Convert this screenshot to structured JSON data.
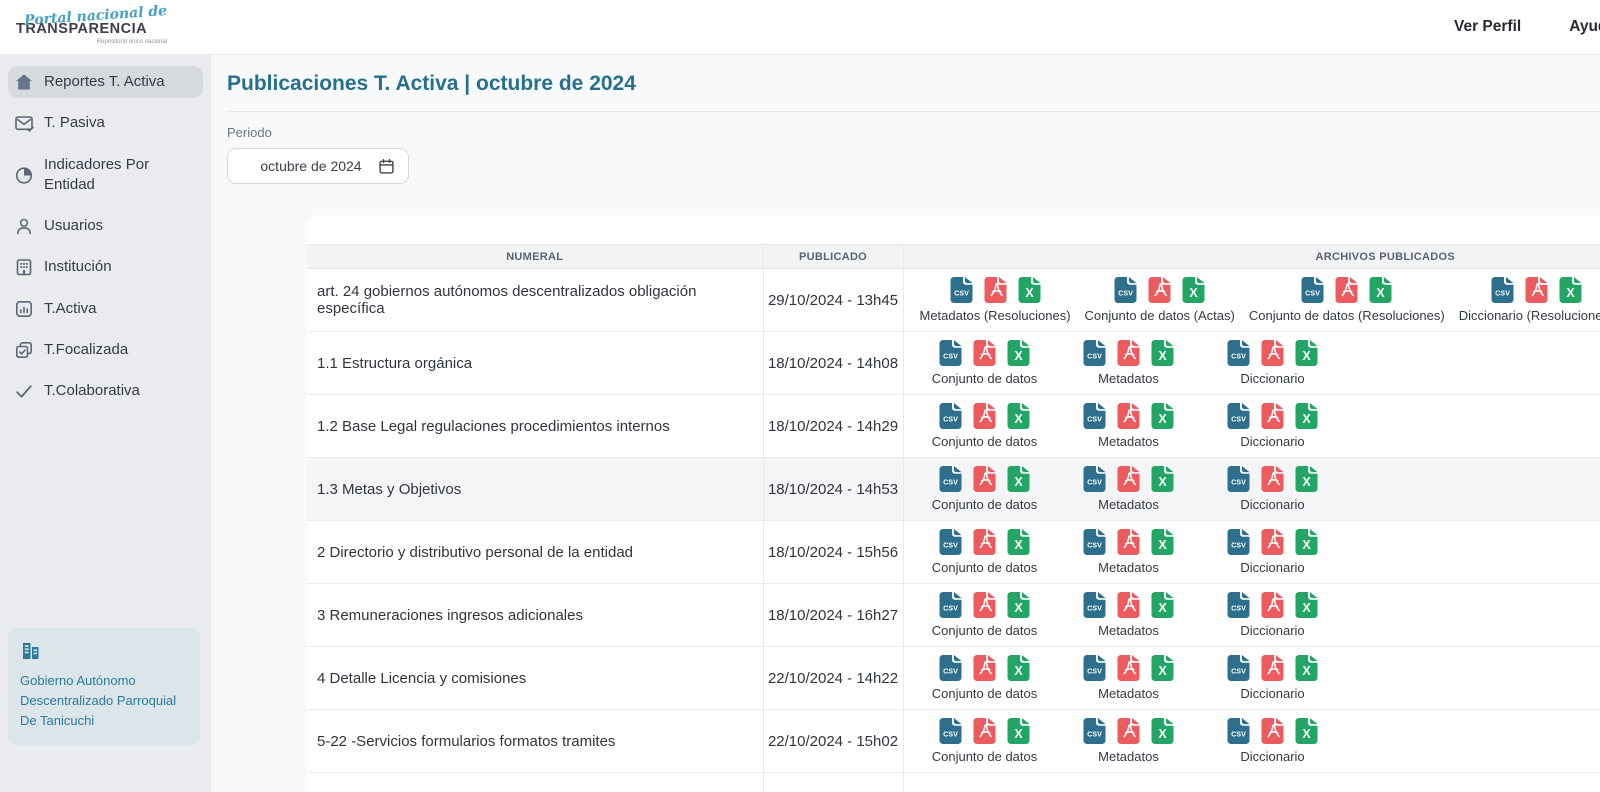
{
  "brand": {
    "script": "Portal nacional de",
    "name": "TRANSPARENCIA",
    "tagline": "Repositorio único nacional"
  },
  "header": {
    "links": [
      {
        "label": "Ver Perfil"
      },
      {
        "label": "Ayuda"
      }
    ]
  },
  "sidebar": {
    "items": [
      {
        "label": "Reportes T. Activa",
        "icon": "home-icon",
        "active": true
      },
      {
        "label": "T. Pasiva",
        "icon": "mail-check-icon",
        "active": false
      },
      {
        "label": "Indicadores Por Entidad",
        "icon": "pie-chart-icon",
        "active": false
      },
      {
        "label": "Usuarios",
        "icon": "user-icon",
        "active": false
      },
      {
        "label": "Institución",
        "icon": "building-icon",
        "active": false
      },
      {
        "label": "T.Activa",
        "icon": "bar-chart-icon",
        "active": false
      },
      {
        "label": "T.Focalizada",
        "icon": "copy-check-icon",
        "active": false
      },
      {
        "label": "T.Colaborativa",
        "icon": "check-icon",
        "active": false
      }
    ],
    "entity": {
      "name": "Gobierno Autónomo Descentralizado Parroquial De Tanicuchi",
      "icon": "institution-icon"
    }
  },
  "main": {
    "title": "Publicaciones T. Activa | octubre de 2024",
    "period_label": "Periodo",
    "period_value": "octubre de 2024",
    "table": {
      "columns": [
        "NUMERAL",
        "PUBLICADO",
        "ARCHIVOS PUBLICADOS"
      ],
      "file_types": [
        {
          "id": "csv",
          "label": "CSV",
          "color": "#2d6f8c"
        },
        {
          "id": "pdf",
          "label": "PDF",
          "color": "#ec5b5e"
        },
        {
          "id": "xls",
          "label": "X",
          "color": "#23a566"
        }
      ],
      "rows": [
        {
          "numeral": "art. 24 gobiernos autónomos descentralizados obligación específica",
          "publicado": "29/10/2024 - 13h45",
          "highlighted": false,
          "archivos": [
            {
              "label": "Metadatos (Resoluciones)"
            },
            {
              "label": "Conjunto de datos (Actas)"
            },
            {
              "label": "Conjunto de datos (Resoluciones)"
            },
            {
              "label": "Diccionario (Resoluciones)"
            }
          ]
        },
        {
          "numeral": "1.1 Estructura orgánica",
          "publicado": "18/10/2024 - 14h08",
          "highlighted": false,
          "archivos": [
            {
              "label": "Conjunto de datos"
            },
            {
              "label": "Metadatos"
            },
            {
              "label": "Diccionario"
            }
          ]
        },
        {
          "numeral": "1.2 Base Legal regulaciones procedimientos internos",
          "publicado": "18/10/2024 - 14h29",
          "highlighted": false,
          "archivos": [
            {
              "label": "Conjunto de datos"
            },
            {
              "label": "Metadatos"
            },
            {
              "label": "Diccionario"
            }
          ]
        },
        {
          "numeral": "1.3 Metas y Objetivos",
          "publicado": "18/10/2024 - 14h53",
          "highlighted": true,
          "archivos": [
            {
              "label": "Conjunto de datos"
            },
            {
              "label": "Metadatos"
            },
            {
              "label": "Diccionario"
            }
          ]
        },
        {
          "numeral": "2 Directorio y distributivo personal de la entidad",
          "publicado": "18/10/2024 - 15h56",
          "highlighted": false,
          "archivos": [
            {
              "label": "Conjunto de datos"
            },
            {
              "label": "Metadatos"
            },
            {
              "label": "Diccionario"
            }
          ]
        },
        {
          "numeral": "3 Remuneraciones ingresos adicionales",
          "publicado": "18/10/2024 - 16h27",
          "highlighted": false,
          "archivos": [
            {
              "label": "Conjunto de datos"
            },
            {
              "label": "Metadatos"
            },
            {
              "label": "Diccionario"
            }
          ]
        },
        {
          "numeral": "4 Detalle Licencia y comisiones",
          "publicado": "22/10/2024 - 14h22",
          "highlighted": false,
          "archivos": [
            {
              "label": "Conjunto de datos"
            },
            {
              "label": "Metadatos"
            },
            {
              "label": "Diccionario"
            }
          ]
        },
        {
          "numeral": "5-22 -Servicios formularios formatos tramites",
          "publicado": "22/10/2024 - 15h02",
          "highlighted": false,
          "archivos": [
            {
              "label": "Conjunto de datos"
            },
            {
              "label": "Metadatos"
            },
            {
              "label": "Diccionario"
            }
          ]
        }
      ]
    }
  },
  "colors": {
    "accent": "#26708e",
    "sidebar_bg": "#e9ebee",
    "entity_text": "#2b7a99",
    "csv": "#2d6f8c",
    "pdf": "#ec5b5e",
    "xls": "#23a566"
  }
}
